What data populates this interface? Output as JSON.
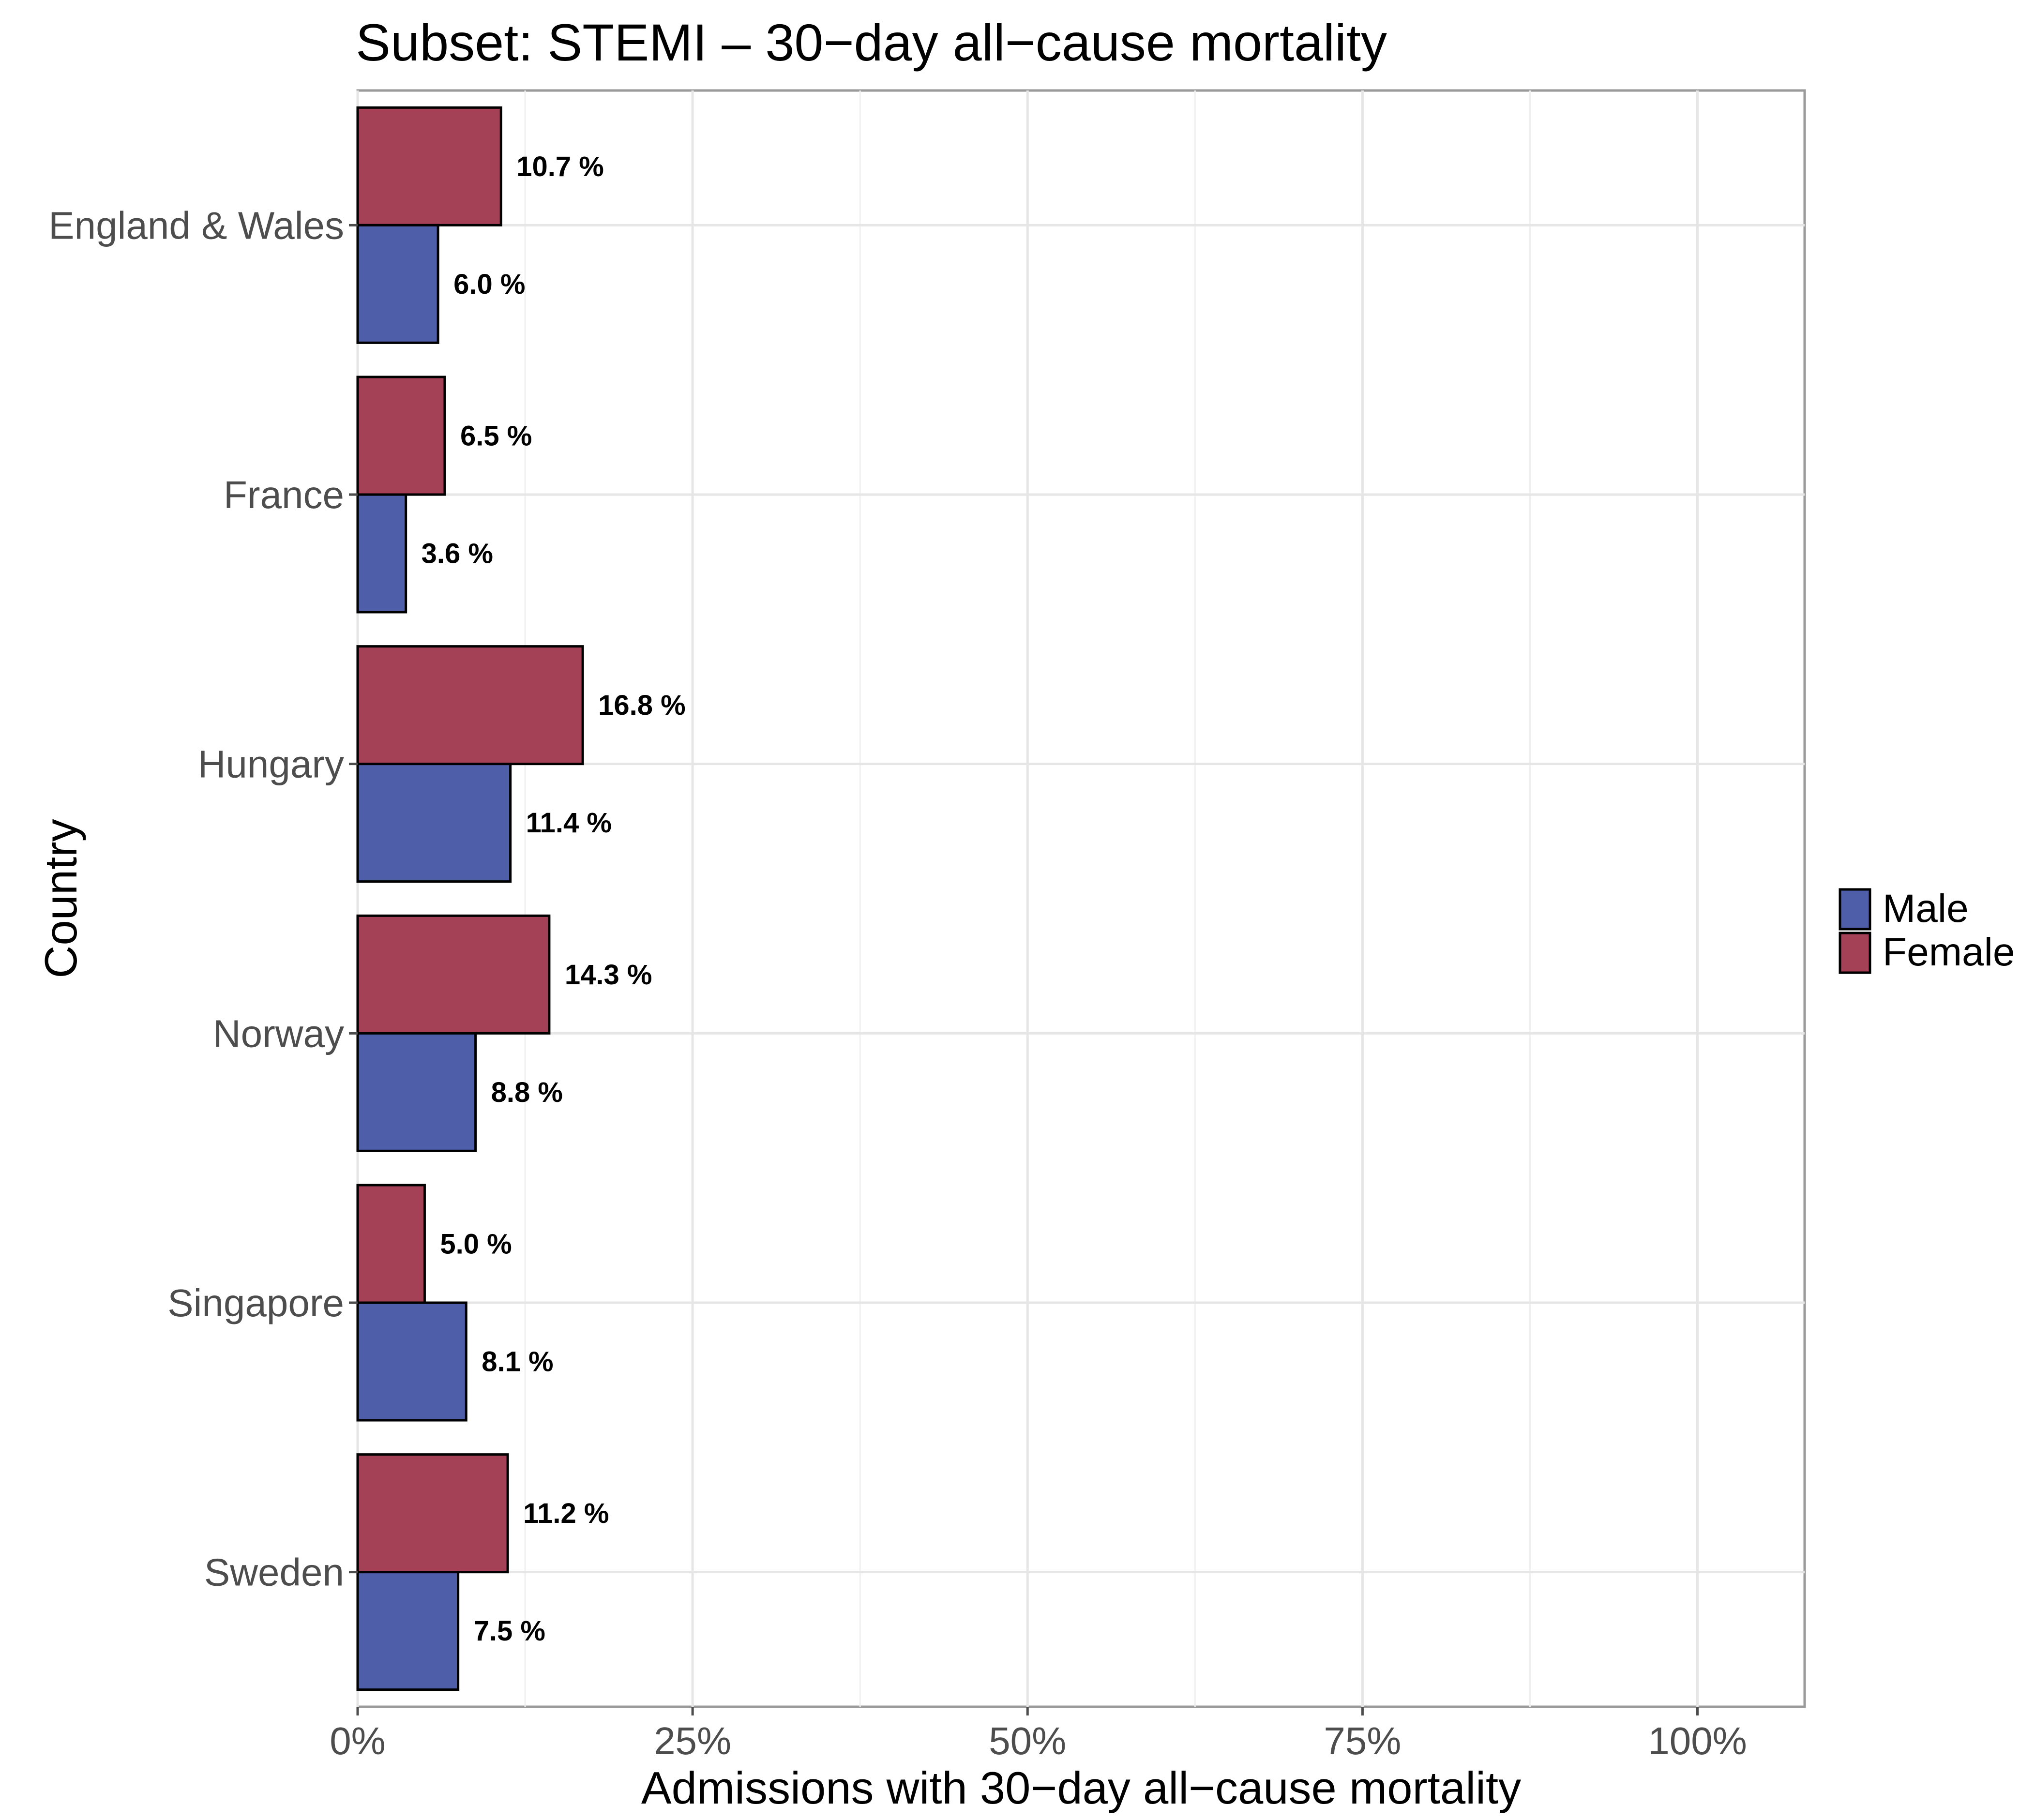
{
  "chart_data": {
    "type": "bar",
    "orientation": "horizontal",
    "title": "Subset: STEMI – 30−day all−cause mortality",
    "xlabel": "Admissions with 30−day all−cause mortality",
    "ylabel": "Country",
    "categories": [
      "England & Wales",
      "France",
      "Hungary",
      "Norway",
      "Singapore",
      "Sweden"
    ],
    "series": [
      {
        "name": "Male",
        "color": "#4f5ea8",
        "values": [
          6.0,
          3.6,
          11.4,
          8.8,
          8.1,
          7.5
        ],
        "labels": [
          "6.0 %",
          "3.6 %",
          "11.4 %",
          "8.8 %",
          "8.1 %",
          "7.5 %"
        ]
      },
      {
        "name": "Female",
        "color": "#a44157",
        "values": [
          10.7,
          6.5,
          16.8,
          14.3,
          5.0,
          11.2
        ],
        "labels": [
          "10.7 %",
          "6.5 %",
          "16.8 %",
          "14.3 %",
          "5.0 %",
          "11.2 %"
        ]
      }
    ],
    "xlim": [
      0,
      108
    ],
    "xticks": [
      0,
      25,
      50,
      75,
      100
    ],
    "xtick_labels": [
      "0%",
      "25%",
      "50%",
      "75%",
      "100%"
    ],
    "grid": true,
    "legend_position": "right"
  }
}
